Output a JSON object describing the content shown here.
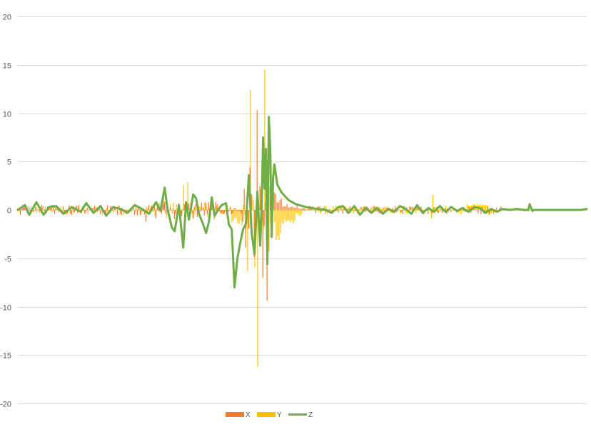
{
  "chart_data": {
    "type": "bar",
    "title": "",
    "xlabel": "",
    "ylabel": "",
    "ylim": [
      -20,
      20
    ],
    "yticks": [
      20,
      15,
      10,
      5,
      0,
      -5,
      -10,
      -15,
      -20
    ],
    "grid": true,
    "legend_position": "bottom",
    "n_points": 400,
    "series": [
      {
        "name": "X",
        "type": "bar",
        "color": "#ed7d31",
        "peaks": [
          {
            "index": 168,
            "value": 10.3
          },
          {
            "index": 163,
            "value": 4.4
          },
          {
            "index": 172,
            "value": -7.0
          },
          {
            "index": 175,
            "value": -9.4
          },
          {
            "index": 160,
            "value": -3.9
          },
          {
            "index": 166,
            "value": -4.9
          },
          {
            "index": 182,
            "value": 0.8
          },
          {
            "index": 90,
            "value": -1.2
          }
        ]
      },
      {
        "name": "Y",
        "type": "bar",
        "color": "#ffc000",
        "peaks": [
          {
            "index": 163,
            "value": 12.4
          },
          {
            "index": 173,
            "value": 14.5
          },
          {
            "index": 168,
            "value": -16.2
          },
          {
            "index": 166,
            "value": -5.9
          },
          {
            "index": 161,
            "value": -6.3
          },
          {
            "index": 176,
            "value": -4.3
          },
          {
            "index": 179,
            "value": 4.6
          },
          {
            "index": 119,
            "value": 2.9
          },
          {
            "index": 116,
            "value": 2.6
          },
          {
            "index": 117,
            "value": -2.7
          },
          {
            "index": 291,
            "value": 1.5
          },
          {
            "index": 290,
            "value": -0.9
          },
          {
            "index": 324,
            "value": 0.6
          },
          {
            "index": 102,
            "value": 1.8
          }
        ]
      },
      {
        "name": "Z",
        "type": "line",
        "color": "#70ad47",
        "points": [
          [
            0,
            0.0
          ],
          [
            5,
            0.5
          ],
          [
            8,
            -0.5
          ],
          [
            13,
            0.8
          ],
          [
            18,
            -0.5
          ],
          [
            22,
            0.3
          ],
          [
            27,
            0.4
          ],
          [
            32,
            -0.4
          ],
          [
            38,
            0.3
          ],
          [
            44,
            -0.2
          ],
          [
            48,
            0.7
          ],
          [
            53,
            -0.3
          ],
          [
            58,
            0.4
          ],
          [
            62,
            -0.6
          ],
          [
            67,
            0.3
          ],
          [
            72,
            0.1
          ],
          [
            77,
            -0.3
          ],
          [
            82,
            0.5
          ],
          [
            87,
            0.1
          ],
          [
            92,
            -0.4
          ],
          [
            97,
            0.8
          ],
          [
            100,
            -0.1
          ],
          [
            103,
            2.3
          ],
          [
            105,
            0.1
          ],
          [
            108,
            -1.8
          ],
          [
            110,
            -2.2
          ],
          [
            113,
            0.5
          ],
          [
            116,
            -3.9
          ],
          [
            118,
            0.8
          ],
          [
            120,
            -1.0
          ],
          [
            123,
            1.6
          ],
          [
            125,
            1.2
          ],
          [
            127,
            -0.4
          ],
          [
            130,
            -1.5
          ],
          [
            132,
            -2.4
          ],
          [
            134,
            -1.2
          ],
          [
            136,
            1.3
          ],
          [
            138,
            -0.6
          ],
          [
            140,
            -0.1
          ],
          [
            143,
            0.5
          ],
          [
            146,
            0.7
          ],
          [
            148,
            -1.5
          ],
          [
            150,
            -2.0
          ],
          [
            152,
            -8.0
          ],
          [
            154,
            -5.0
          ],
          [
            156,
            -3.4
          ],
          [
            158,
            -2.0
          ],
          [
            160,
            -1.4
          ],
          [
            162,
            3.6
          ],
          [
            164,
            -2.4
          ],
          [
            166,
            -4.6
          ],
          [
            168,
            1.9
          ],
          [
            170,
            -3.7
          ],
          [
            171,
            0.5
          ],
          [
            172,
            7.5
          ],
          [
            173,
            2.2
          ],
          [
            174,
            6.3
          ],
          [
            175,
            -5.6
          ],
          [
            176,
            9.6
          ],
          [
            177,
            6.5
          ],
          [
            178,
            -2.8
          ],
          [
            179,
            3.3
          ],
          [
            180,
            4.7
          ],
          [
            182,
            2.6
          ],
          [
            185,
            1.8
          ],
          [
            190,
            1.0
          ],
          [
            195,
            0.6
          ],
          [
            202,
            0.3
          ],
          [
            210,
            0.1
          ],
          [
            216,
            0.0
          ],
          [
            220,
            -0.3
          ],
          [
            225,
            0.3
          ],
          [
            228,
            0.4
          ],
          [
            232,
            -0.3
          ],
          [
            236,
            0.4
          ],
          [
            240,
            -0.5
          ],
          [
            244,
            0.2
          ],
          [
            248,
            -0.3
          ],
          [
            252,
            0.2
          ],
          [
            256,
            -0.4
          ],
          [
            260,
            0.1
          ],
          [
            264,
            -0.2
          ],
          [
            268,
            0.4
          ],
          [
            272,
            0.1
          ],
          [
            276,
            -0.4
          ],
          [
            280,
            0.5
          ],
          [
            284,
            -0.3
          ],
          [
            288,
            0.2
          ],
          [
            292,
            -0.2
          ],
          [
            296,
            0.4
          ],
          [
            300,
            -0.2
          ],
          [
            304,
            0.3
          ],
          [
            308,
            -0.1
          ],
          [
            312,
            0.2
          ],
          [
            316,
            -0.2
          ],
          [
            320,
            0.3
          ],
          [
            324,
            0.2
          ],
          [
            328,
            -0.3
          ],
          [
            332,
            0.1
          ],
          [
            336,
            -0.2
          ],
          [
            340,
            0.1
          ],
          [
            345,
            0.0
          ],
          [
            350,
            0.1
          ],
          [
            355,
            0.0
          ],
          [
            358,
            0.0
          ],
          [
            359,
            0.6
          ],
          [
            360,
            0.2
          ],
          [
            361,
            -0.1
          ],
          [
            362,
            0.0
          ],
          [
            370,
            0.0
          ],
          [
            380,
            0.0
          ],
          [
            390,
            0.0
          ],
          [
            395,
            0.0
          ],
          [
            399,
            0.1
          ]
        ]
      }
    ]
  }
}
